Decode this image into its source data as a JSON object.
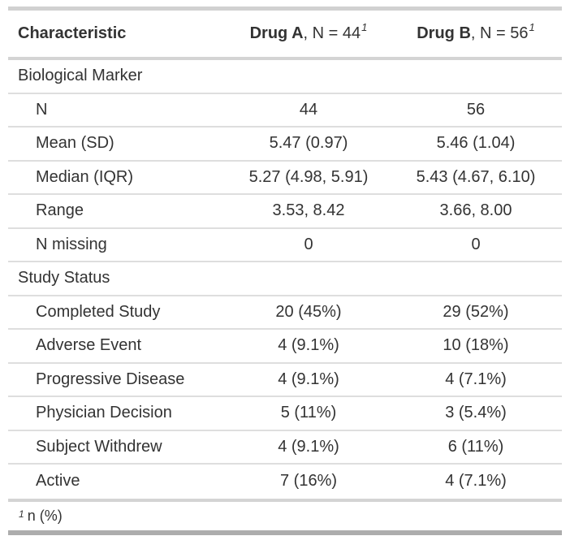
{
  "chart_data": {
    "type": "table",
    "columns": [
      {
        "label": "Characteristic"
      },
      {
        "name": "Drug A",
        "suffix": ", N = 44",
        "footnote_mark": "1"
      },
      {
        "name": "Drug B",
        "suffix": ", N = 56",
        "footnote_mark": "1"
      }
    ],
    "sections": [
      {
        "group": "Biological Marker",
        "rows": [
          {
            "label": "N",
            "drug_a": "44",
            "drug_b": "56"
          },
          {
            "label": "Mean (SD)",
            "drug_a": "5.47 (0.97)",
            "drug_b": "5.46 (1.04)"
          },
          {
            "label": "Median (IQR)",
            "drug_a": "5.27 (4.98, 5.91)",
            "drug_b": "5.43 (4.67, 6.10)"
          },
          {
            "label": "Range",
            "drug_a": "3.53, 8.42",
            "drug_b": "3.66, 8.00"
          },
          {
            "label": "N missing",
            "drug_a": "0",
            "drug_b": "0"
          }
        ]
      },
      {
        "group": "Study Status",
        "rows": [
          {
            "label": "Completed Study",
            "drug_a": "20 (45%)",
            "drug_b": "29 (52%)"
          },
          {
            "label": "Adverse Event",
            "drug_a": "4 (9.1%)",
            "drug_b": "10 (18%)"
          },
          {
            "label": "Progressive Disease",
            "drug_a": "4 (9.1%)",
            "drug_b": "4 (7.1%)"
          },
          {
            "label": "Physician Decision",
            "drug_a": "5 (11%)",
            "drug_b": "3 (5.4%)"
          },
          {
            "label": "Subject Withdrew",
            "drug_a": "4 (9.1%)",
            "drug_b": "6 (11%)"
          },
          {
            "label": "Active",
            "drug_a": "7 (16%)",
            "drug_b": "4 (7.1%)"
          }
        ]
      }
    ],
    "footnote": {
      "mark": "1",
      "text": "n (%)"
    }
  },
  "colors": {
    "background": "#ffffff",
    "text": "#333333",
    "border_top": "#d1d1d1",
    "border_header": "#d4d4d4",
    "border_row": "#dedede",
    "border_bottom": "#adadad"
  }
}
